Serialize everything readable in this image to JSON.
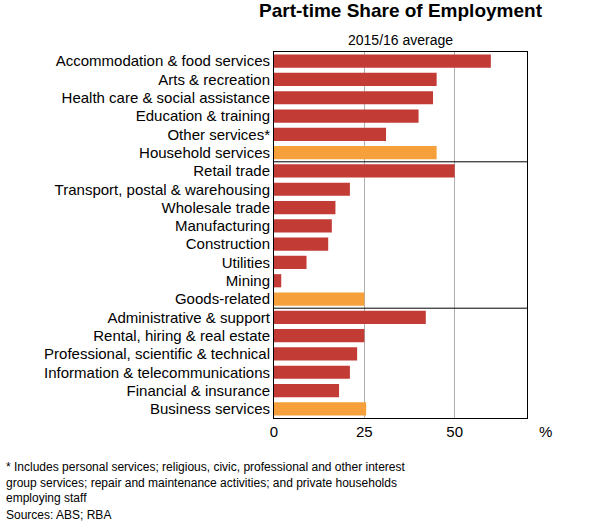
{
  "chart_data": {
    "type": "bar",
    "orientation": "horizontal",
    "title": "Part-time Share of Employment",
    "subtitle": "2015/16 average",
    "xlabel": "%",
    "categories": [
      "Accommodation & food services",
      "Arts & recreation",
      "Health care & social assistance",
      "Education & training",
      "Other services*",
      "Household services",
      "Retail trade",
      "Transport, postal & warehousing",
      "Wholesale trade",
      "Manufacturing",
      "Construction",
      "Utilities",
      "Mining",
      "Goods-related",
      "Administrative & support",
      "Rental, hiring & real estate",
      "Professional, scientific & technical",
      "Information & telecommunications",
      "Financial & insurance",
      "Business services"
    ],
    "values": [
      60,
      45,
      44,
      40,
      31,
      45,
      50,
      21,
      17,
      16,
      15,
      9,
      2,
      25,
      42,
      25,
      23,
      21,
      18,
      25.5
    ],
    "colors": [
      "#c23b35",
      "#c23b35",
      "#c23b35",
      "#c23b35",
      "#c23b35",
      "#f5a03a",
      "#c23b35",
      "#c23b35",
      "#c23b35",
      "#c23b35",
      "#c23b35",
      "#c23b35",
      "#c23b35",
      "#f5a03a",
      "#c23b35",
      "#c23b35",
      "#c23b35",
      "#c23b35",
      "#c23b35",
      "#f5a03a"
    ],
    "xlim": [
      0,
      70
    ],
    "xticks": [
      0,
      25,
      50
    ],
    "grid": true,
    "annotations": [
      "* Includes personal services; religious, civic, professional and other interest group services; repair and maintenance activities; and private households employing staff",
      "Sources: ABS; RBA"
    ]
  }
}
